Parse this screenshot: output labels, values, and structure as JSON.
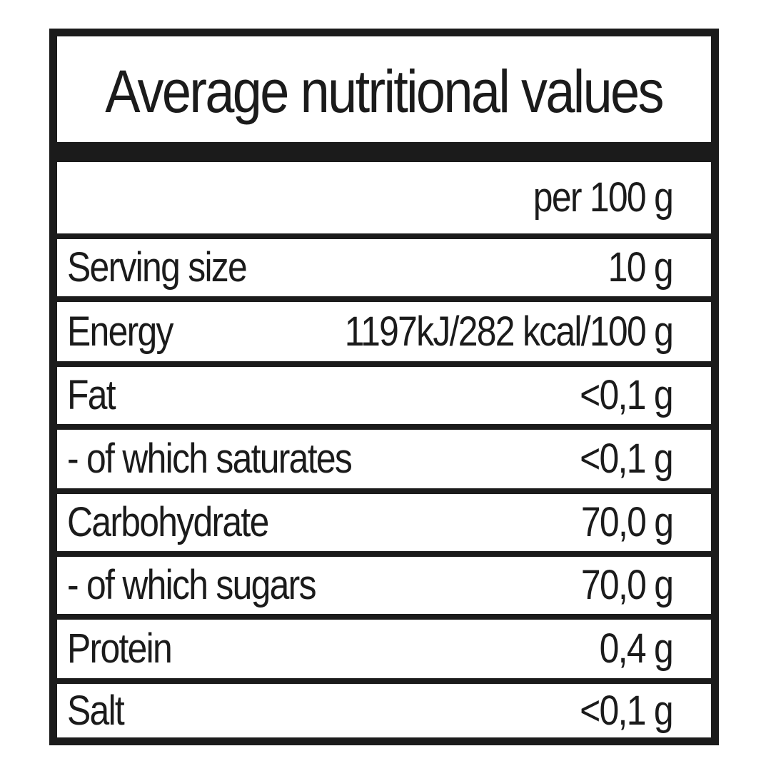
{
  "table": {
    "title": "Average nutritional values",
    "column_header": "per 100 g",
    "rows": [
      {
        "name": "Serving size",
        "value": "10 g"
      },
      {
        "name": "Energy",
        "value": "1197kJ/282 kcal/100 g"
      },
      {
        "name": "Fat",
        "value": "<0,1 g"
      },
      {
        "name": "- of which saturates",
        "value": "<0,1 g"
      },
      {
        "name": "Carbohydrate",
        "value": "70,0 g"
      },
      {
        "name": "- of which sugars",
        "value": "70,0 g"
      },
      {
        "name": "Protein",
        "value": "0,4 g"
      },
      {
        "name": "Salt",
        "value": "<0,1 g"
      }
    ]
  },
  "colors": {
    "ink": "#1b1b1b",
    "background": "#ffffff"
  }
}
